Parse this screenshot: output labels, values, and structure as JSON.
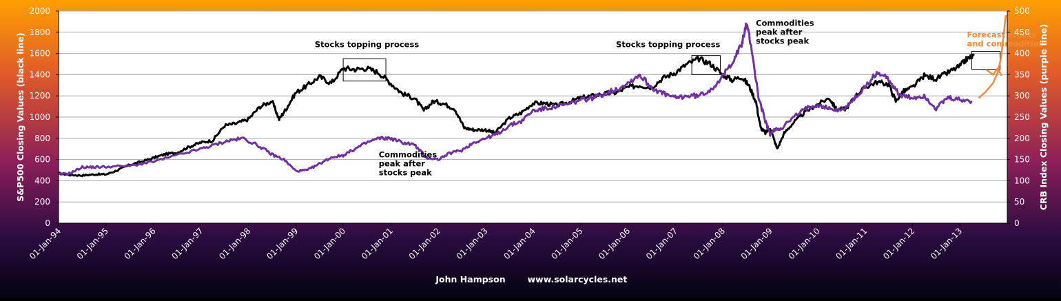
{
  "chart_data": {
    "type": "line",
    "xlabel": "",
    "ylabel": "S&P500 Closing Values (black line)",
    "y2label": "CRB Index Closing Values (purple line)",
    "ylim": [
      0,
      2000
    ],
    "y2lim": [
      0,
      500
    ],
    "y_ticks": [
      "0",
      "200",
      "400",
      "600",
      "800",
      "1000",
      "1200",
      "1400",
      "1600",
      "1800",
      "2000"
    ],
    "y2_ticks": [
      "0",
      "50",
      "100",
      "150",
      "200",
      "250",
      "300",
      "350",
      "400",
      "450",
      "500"
    ],
    "x_ticks": [
      "01-Jan-94",
      "01-Jan-95",
      "01-Jan-96",
      "01-Jan-97",
      "01-Jan-98",
      "01-Jan-99",
      "01-Jan-00",
      "01-Jan-01",
      "01-Jan-02",
      "01-Jan-03",
      "01-Jan-04",
      "01-Jan-05",
      "01-Jan-06",
      "01-Jan-07",
      "01-Jan-08",
      "01-Jan-09",
      "01-Jan-10",
      "01-Jan-11",
      "01-Jan-12",
      "01-Jan-13"
    ],
    "grid": true,
    "colors": {
      "sp500": "#000000",
      "crb": "#7030a0",
      "forecast": "#f08a3c",
      "grid": "#aaaaaa"
    },
    "series": [
      {
        "key": "sp500",
        "axis": "left",
        "x": [
          1994.0,
          1994.25,
          1994.5,
          1994.75,
          1995.0,
          1995.25,
          1995.5,
          1995.75,
          1996.0,
          1996.25,
          1996.5,
          1996.75,
          1997.0,
          1997.25,
          1997.5,
          1997.75,
          1998.0,
          1998.25,
          1998.5,
          1998.65,
          1998.8,
          1999.0,
          1999.25,
          1999.5,
          1999.75,
          2000.0,
          2000.25,
          2000.5,
          2000.75,
          2001.0,
          2001.25,
          2001.5,
          2001.7,
          2001.9,
          2002.1,
          2002.35,
          2002.55,
          2002.75,
          2003.0,
          2003.2,
          2003.5,
          2003.75,
          2004.0,
          2004.25,
          2004.5,
          2004.75,
          2005.0,
          2005.25,
          2005.5,
          2005.75,
          2006.0,
          2006.25,
          2006.5,
          2006.75,
          2007.0,
          2007.25,
          2007.5,
          2007.75,
          2008.0,
          2008.2,
          2008.4,
          2008.55,
          2008.7,
          2008.8,
          2008.9,
          2009.0,
          2009.15,
          2009.3,
          2009.5,
          2009.75,
          2010.0,
          2010.25,
          2010.4,
          2010.6,
          2010.8,
          2011.0,
          2011.25,
          2011.5,
          2011.65,
          2011.8,
          2012.0,
          2012.25,
          2012.5,
          2012.75,
          2013.0,
          2013.15,
          2013.3
        ],
        "values": [
          470,
          455,
          450,
          460,
          460,
          500,
          550,
          580,
          615,
          650,
          665,
          720,
          760,
          780,
          920,
          940,
          980,
          1100,
          1150,
          980,
          1080,
          1230,
          1300,
          1380,
          1320,
          1460,
          1450,
          1460,
          1420,
          1320,
          1220,
          1180,
          1060,
          1150,
          1130,
          1080,
          900,
          880,
          880,
          850,
          990,
          1040,
          1130,
          1130,
          1110,
          1140,
          1180,
          1200,
          1220,
          1230,
          1280,
          1300,
          1280,
          1370,
          1420,
          1500,
          1550,
          1500,
          1400,
          1350,
          1380,
          1300,
          1150,
          900,
          850,
          900,
          700,
          850,
          950,
          1050,
          1120,
          1180,
          1070,
          1080,
          1200,
          1280,
          1330,
          1310,
          1150,
          1240,
          1280,
          1390,
          1360,
          1420,
          1480,
          1550,
          1580
        ]
      },
      {
        "key": "crb",
        "axis": "right",
        "x": [
          1994.0,
          1994.25,
          1994.5,
          1994.75,
          1995.0,
          1995.5,
          1996.0,
          1996.5,
          1997.0,
          1997.3,
          1997.6,
          1997.9,
          1998.25,
          1998.5,
          1998.75,
          1999.0,
          1999.25,
          1999.5,
          1999.75,
          2000.0,
          2000.25,
          2000.5,
          2000.75,
          2001.0,
          2001.25,
          2001.5,
          2001.75,
          2002.0,
          2002.25,
          2002.5,
          2002.75,
          2003.0,
          2003.25,
          2003.5,
          2003.75,
          2004.0,
          2004.25,
          2004.5,
          2004.75,
          2005.0,
          2005.25,
          2005.5,
          2005.75,
          2006.0,
          2006.25,
          2006.5,
          2006.75,
          2007.0,
          2007.25,
          2007.5,
          2007.75,
          2008.0,
          2008.2,
          2008.4,
          2008.5,
          2008.6,
          2008.75,
          2008.9,
          2009.0,
          2009.1,
          2009.25,
          2009.5,
          2009.75,
          2010.0,
          2010.25,
          2010.5,
          2010.75,
          2011.0,
          2011.25,
          2011.5,
          2011.75,
          2012.0,
          2012.25,
          2012.5,
          2012.75,
          2013.0,
          2013.25
        ],
        "values": [
          115,
          118,
          132,
          132,
          133,
          135,
          145,
          160,
          175,
          185,
          195,
          200,
          180,
          162,
          150,
          123,
          125,
          140,
          155,
          160,
          175,
          190,
          200,
          200,
          190,
          185,
          155,
          150,
          165,
          172,
          190,
          200,
          210,
          230,
          240,
          265,
          270,
          275,
          280,
          290,
          295,
          305,
          315,
          330,
          350,
          320,
          305,
          295,
          300,
          300,
          315,
          345,
          380,
          420,
          470,
          420,
          300,
          240,
          210,
          220,
          225,
          250,
          270,
          280,
          270,
          265,
          290,
          320,
          355,
          340,
          300,
          295,
          300,
          270,
          295,
          290,
          288
        ]
      },
      {
        "key": "forecast",
        "axis": "right",
        "x": [
          2013.4,
          2013.55,
          2013.7,
          2013.8,
          2013.87,
          2013.92,
          2013.97
        ],
        "values": [
          295,
          310,
          330,
          355,
          390,
          440,
          490
        ]
      }
    ],
    "annotations": [
      {
        "id": "stocks-top-1",
        "text": [
          "Stocks topping process"
        ],
        "color": "#000000"
      },
      {
        "id": "commodities-peak-1",
        "text": [
          "Commodities",
          "peak after",
          "stocks peak"
        ],
        "color": "#000000"
      },
      {
        "id": "stocks-top-2",
        "text": [
          "Stocks topping process"
        ],
        "color": "#000000"
      },
      {
        "id": "commodities-peak-2",
        "text": [
          "Commodities",
          "peak after",
          "stocks peak"
        ],
        "color": "#000000"
      },
      {
        "id": "forecast",
        "text": [
          "Forecast stocks",
          "and commodities"
        ],
        "color": "#f08a3c"
      }
    ],
    "footer": {
      "author": "John Hampson",
      "url": "www.solarcycles.net"
    }
  }
}
